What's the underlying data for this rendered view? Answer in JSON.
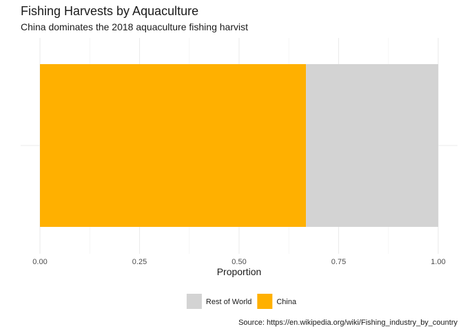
{
  "chart_data": {
    "type": "bar",
    "orientation": "horizontal",
    "stacked": true,
    "title": "Fishing Harvests by Aquaculture",
    "subtitle": "China dominates the 2018 aquaculture fishing harvist",
    "xlabel": "Proportion",
    "ylabel": "",
    "xlim": [
      0,
      1
    ],
    "x_ticks": [
      0,
      0.25,
      0.5,
      0.75,
      1
    ],
    "x_tick_labels": [
      "0.00",
      "0.25",
      "0.50",
      "0.75",
      "1.00"
    ],
    "grid": true,
    "legend_position": "bottom",
    "series": [
      {
        "name": "China",
        "value": 0.668,
        "color": "#FFB000"
      },
      {
        "name": "Rest of World",
        "value": 0.332,
        "color": "#D3D3D3"
      }
    ],
    "legend_order": [
      "Rest of World",
      "China"
    ],
    "caption": "Source: https://en.wikipedia.org/wiki/Fishing_industry_by_country"
  }
}
